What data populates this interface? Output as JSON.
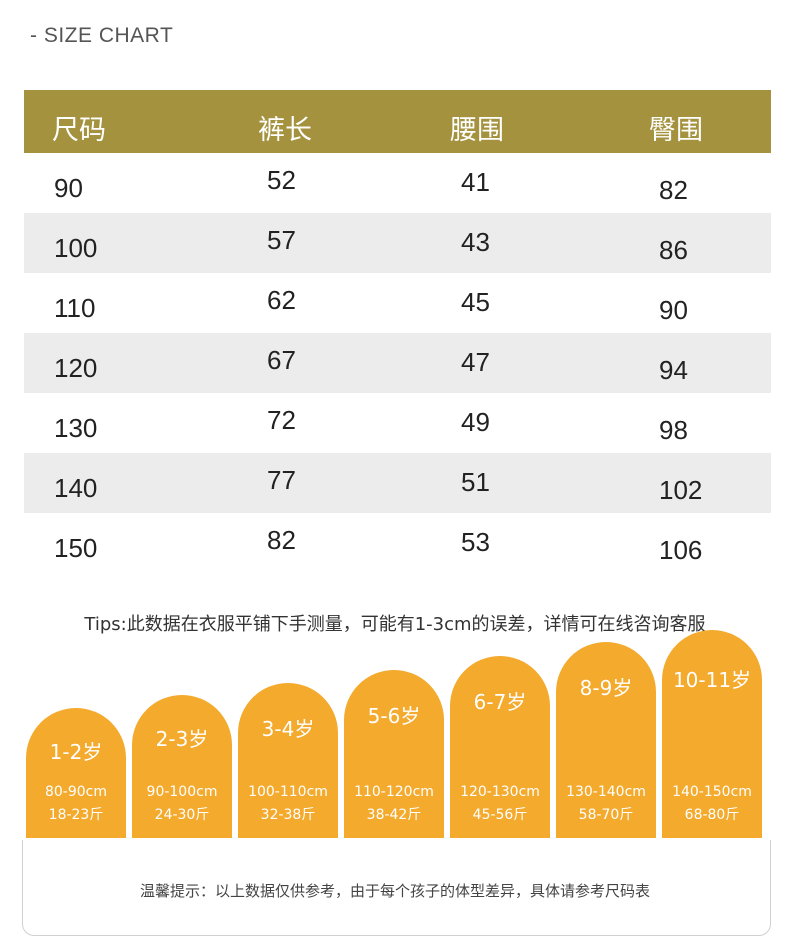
{
  "header_label": "- SIZE CHART",
  "table": {
    "headers": [
      "尺码",
      "裤长",
      "腰围",
      "臀围"
    ],
    "rows": [
      [
        "90",
        "52",
        "41",
        "82"
      ],
      [
        "100",
        "57",
        "43",
        "86"
      ],
      [
        "110",
        "62",
        "45",
        "90"
      ],
      [
        "120",
        "67",
        "47",
        "94"
      ],
      [
        "130",
        "72",
        "49",
        "98"
      ],
      [
        "140",
        "77",
        "51",
        "102"
      ],
      [
        "150",
        "82",
        "53",
        "106"
      ]
    ]
  },
  "tips": "Tips:此数据在衣服平铺下手测量，可能有1-3cm的误差，详情可在线咨询客服",
  "age_groups": [
    {
      "age": "1-2岁",
      "size": "80-90cm",
      "weight": "18-23斤"
    },
    {
      "age": "2-3岁",
      "size": "90-100cm",
      "weight": "24-30斤"
    },
    {
      "age": "3-4岁",
      "size": "100-110cm",
      "weight": "32-38斤"
    },
    {
      "age": "5-6岁",
      "size": "110-120cm",
      "weight": "38-42斤"
    },
    {
      "age": "6-7岁",
      "size": "120-130cm",
      "weight": "45-56斤"
    },
    {
      "age": "8-9岁",
      "size": "130-140cm",
      "weight": "58-70斤"
    },
    {
      "age": "10-11岁",
      "size": "140-150cm",
      "weight": "68-80斤"
    }
  ],
  "footer": "温馨提示：以上数据仅供参考，由于每个孩子的体型差异，具体请参考尺码表",
  "colors": {
    "header_bg": "#a4923e",
    "arch_bg": "#f3aa2d",
    "alt_row": "#ececec"
  }
}
